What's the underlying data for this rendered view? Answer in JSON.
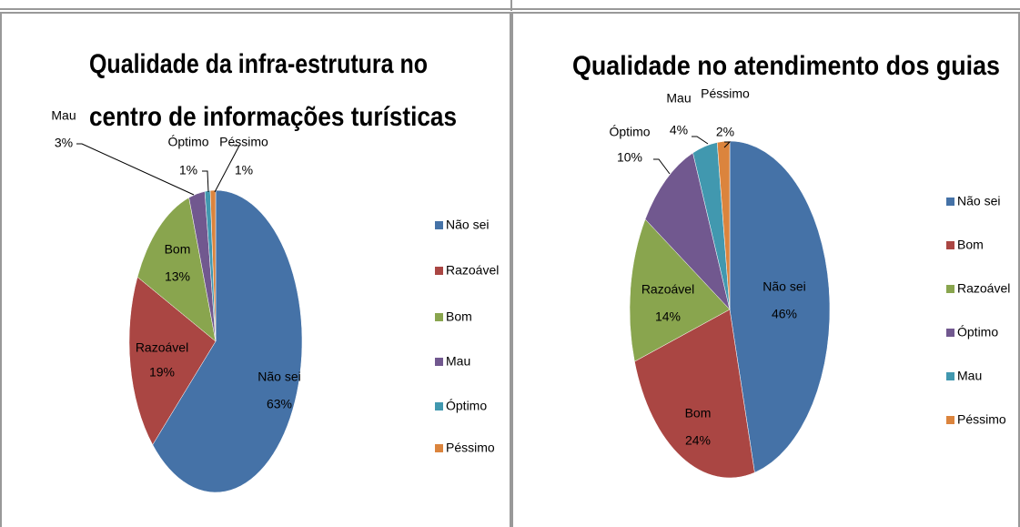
{
  "chart_data": [
    {
      "type": "pie",
      "title": [
        "Qualidade da infra-estrutura no",
        "centro de informações turísticas"
      ],
      "categories": [
        "Não sei",
        "Razoável",
        "Bom",
        "Mau",
        "Óptimo",
        "Péssimo"
      ],
      "values": [
        63,
        19,
        13,
        3,
        1,
        1
      ],
      "value_labels": [
        "63%",
        "19%",
        "13%",
        "3%",
        "1%",
        "1%"
      ],
      "colors": [
        "#4572a7",
        "#aa4643",
        "#89a54e",
        "#71588f",
        "#4198af",
        "#db843d"
      ],
      "legend": "right"
    },
    {
      "type": "pie",
      "title": [
        "Qualidade no atendimento dos guias"
      ],
      "categories": [
        "Não sei",
        "Bom",
        "Razoável",
        "Óptimo",
        "Mau",
        "Péssimo"
      ],
      "values": [
        46,
        24,
        14,
        10,
        4,
        2
      ],
      "value_labels": [
        "46%",
        "24%",
        "14%",
        "10%",
        "4%",
        "2%"
      ],
      "colors": [
        "#4572a7",
        "#aa4643",
        "#89a54e",
        "#71588f",
        "#4198af",
        "#db843d"
      ],
      "legend": "right"
    }
  ]
}
